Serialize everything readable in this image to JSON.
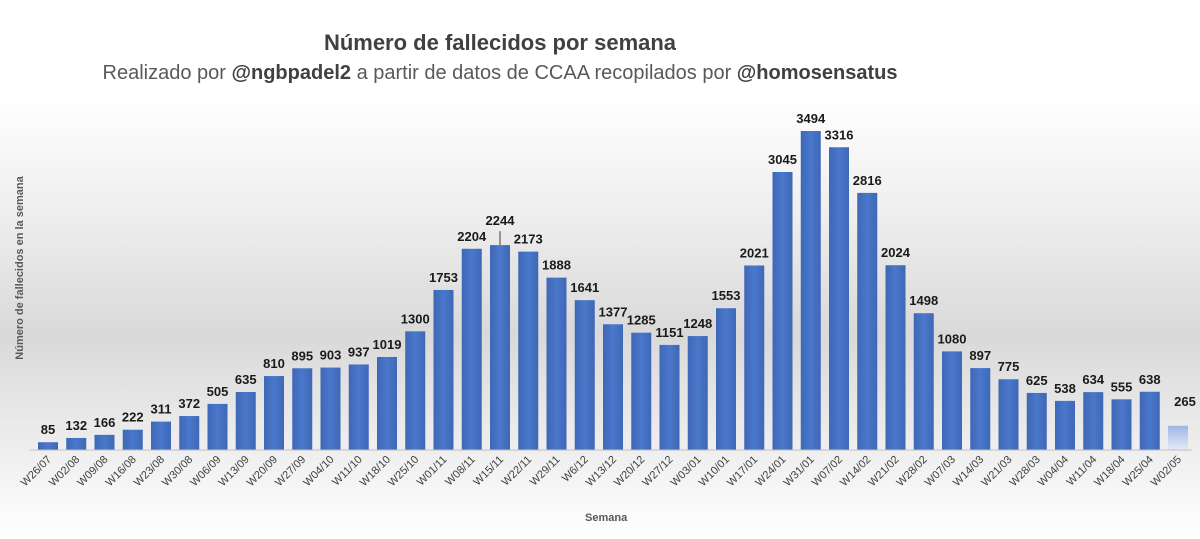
{
  "chart_data": {
    "type": "bar",
    "title": "Número de fallecidos por semana",
    "subtitle": {
      "prefix": "Realizado por ",
      "author": "@ngbpadel2",
      "middle": " a partir de datos de CCAA recopilados por ",
      "source": "@homosensatus"
    },
    "xlabel": "Semana",
    "ylabel": "Número de fallecidos en la semana",
    "categories": [
      "W26/07",
      "W02/08",
      "W09/08",
      "W16/08",
      "W23/08",
      "W30/08",
      "W06/09",
      "W13/09",
      "W20/09",
      "W27/09",
      "W04/10",
      "W11/10",
      "W18/10",
      "W25/10",
      "W01/11",
      "W08/11",
      "W15/11",
      "W22/11",
      "W29/11",
      "W6/12",
      "W13/12",
      "W20/12",
      "W27/12",
      "W03/01",
      "W10/01",
      "W17/01",
      "W24/01",
      "W31/01",
      "W07/02",
      "W14/02",
      "W21/02",
      "W28/02",
      "W07/03",
      "W14/03",
      "W21/03",
      "W28/03",
      "W04/04",
      "W11/04",
      "W18/04",
      "W25/04",
      "W02/05"
    ],
    "values": [
      85,
      132,
      166,
      222,
      311,
      372,
      505,
      635,
      810,
      895,
      903,
      937,
      1019,
      1300,
      1753,
      2204,
      2244,
      2173,
      1888,
      1641,
      1377,
      1285,
      1151,
      1248,
      1553,
      2021,
      3045,
      3494,
      3316,
      2816,
      2024,
      1498,
      1080,
      897,
      775,
      625,
      538,
      634,
      555,
      638,
      265
    ],
    "ylim": [
      0,
      3500
    ],
    "grid": false,
    "colors": {
      "bar": "#4472c4",
      "bar_partial": "#aec2e8"
    }
  }
}
